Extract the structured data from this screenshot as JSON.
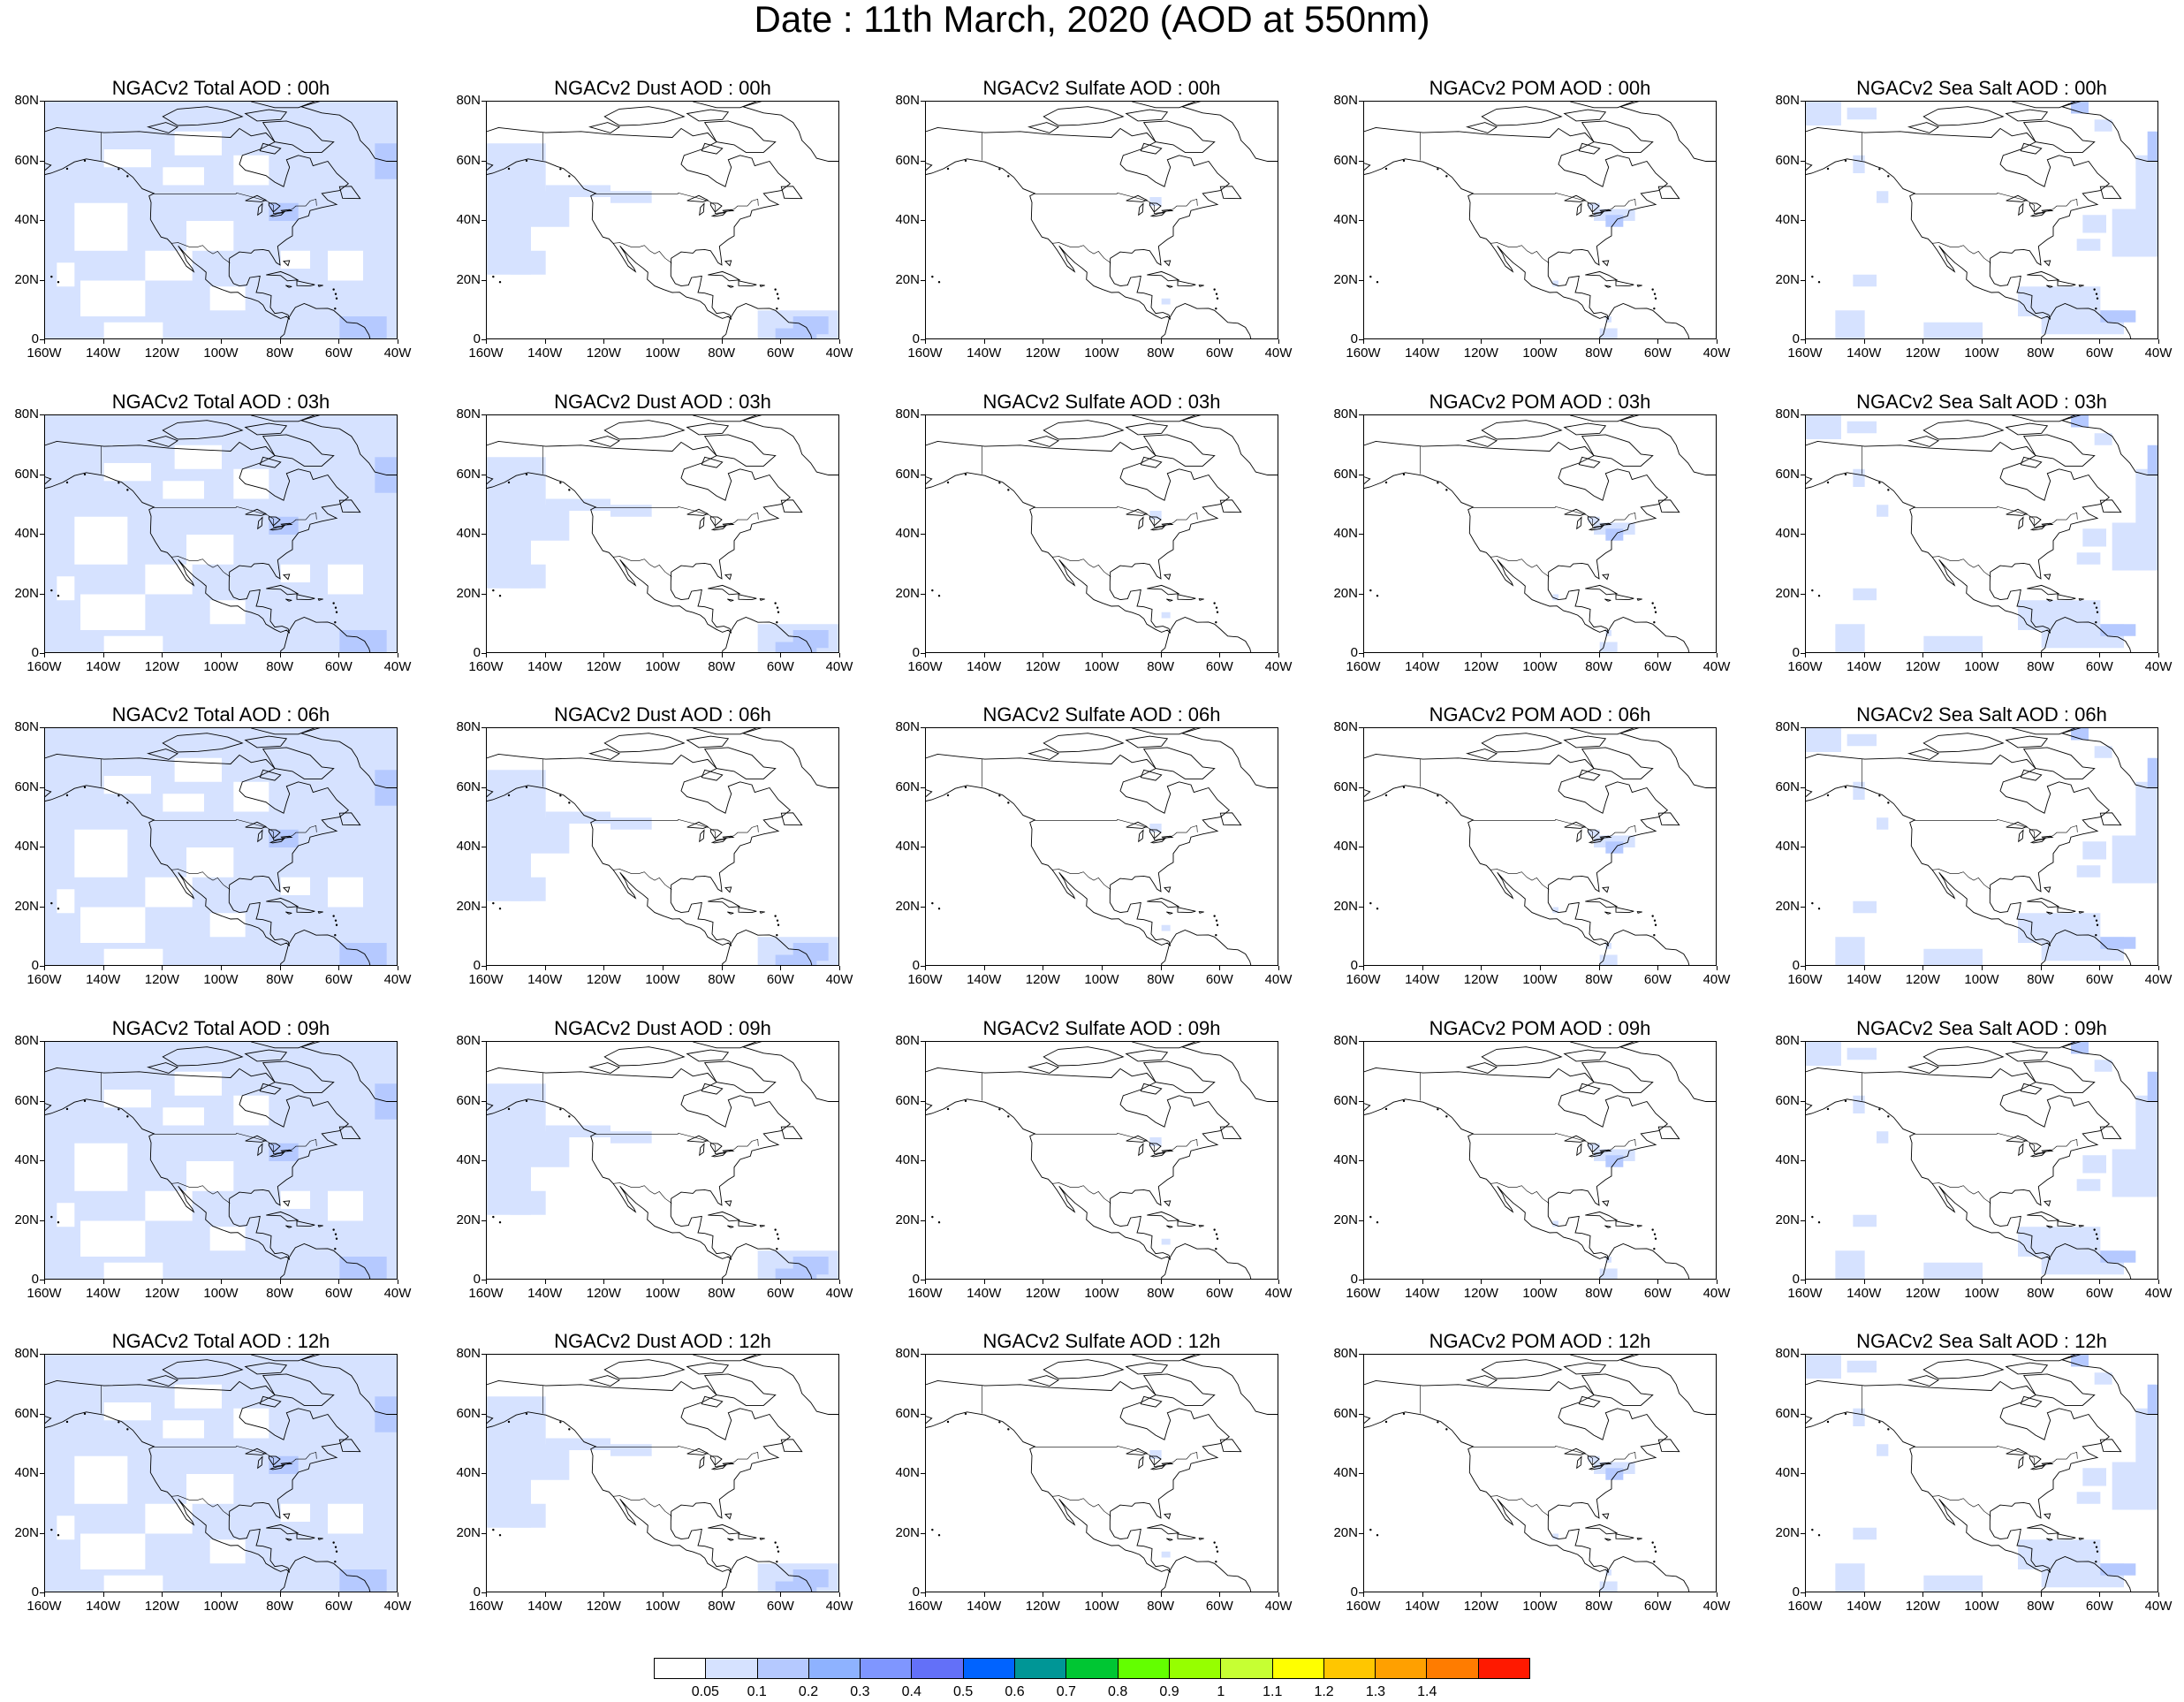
{
  "title": "Date : 11th March, 2020 (AOD at 550nm)",
  "panels": [
    [
      "NGACv2 Total AOD : 00h",
      "NGACv2 Dust AOD : 00h",
      "NGACv2 Sulfate AOD : 00h",
      "NGACv2 POM AOD : 00h",
      "NGACv2 Sea Salt AOD : 00h"
    ],
    [
      "NGACv2 Total AOD : 03h",
      "NGACv2 Dust AOD : 03h",
      "NGACv2 Sulfate AOD : 03h",
      "NGACv2 POM AOD : 03h",
      "NGACv2 Sea Salt AOD : 03h"
    ],
    [
      "NGACv2 Total AOD : 06h",
      "NGACv2 Dust AOD : 06h",
      "NGACv2 Sulfate AOD : 06h",
      "NGACv2 POM AOD : 06h",
      "NGACv2 Sea Salt AOD : 06h"
    ],
    [
      "NGACv2 Total AOD : 09h",
      "NGACv2 Dust AOD : 09h",
      "NGACv2 Sulfate AOD : 09h",
      "NGACv2 POM AOD : 09h",
      "NGACv2 Sea Salt  AOD : 09h"
    ],
    [
      "NGACv2 Total AOD  : 12h",
      "NGACv2 Dust AOD : 12h",
      "NGACv2 Sulfate AOD : 12h",
      "NGACv2 POM  AOD : 12h",
      "NGACv2 Sea Salt  AOD : 12h"
    ]
  ],
  "y_ticks": [
    "80N",
    "60N",
    "40N",
    "20N",
    "0"
  ],
  "x_ticks": [
    "160W",
    "140W",
    "120W",
    "100W",
    "80W",
    "60W",
    "40W"
  ],
  "colorbar": {
    "colors": [
      "#ffffff",
      "#d6e2ff",
      "#b5c9ff",
      "#8eb2ff",
      "#7f96ff",
      "#6370f8",
      "#0063ff",
      "#009696",
      "#00c633",
      "#63ff00",
      "#96ff00",
      "#c6ff33",
      "#ffff00",
      "#ffc600",
      "#ffa000",
      "#ff7c00",
      "#ff1900"
    ],
    "labels": [
      "0.05",
      "0.1",
      "0.2",
      "0.3",
      "0.4",
      "0.5",
      "0.6",
      "0.7",
      "0.8",
      "0.9",
      "1",
      "1.1",
      "1.2",
      "1.3",
      "1.4"
    ]
  }
}
